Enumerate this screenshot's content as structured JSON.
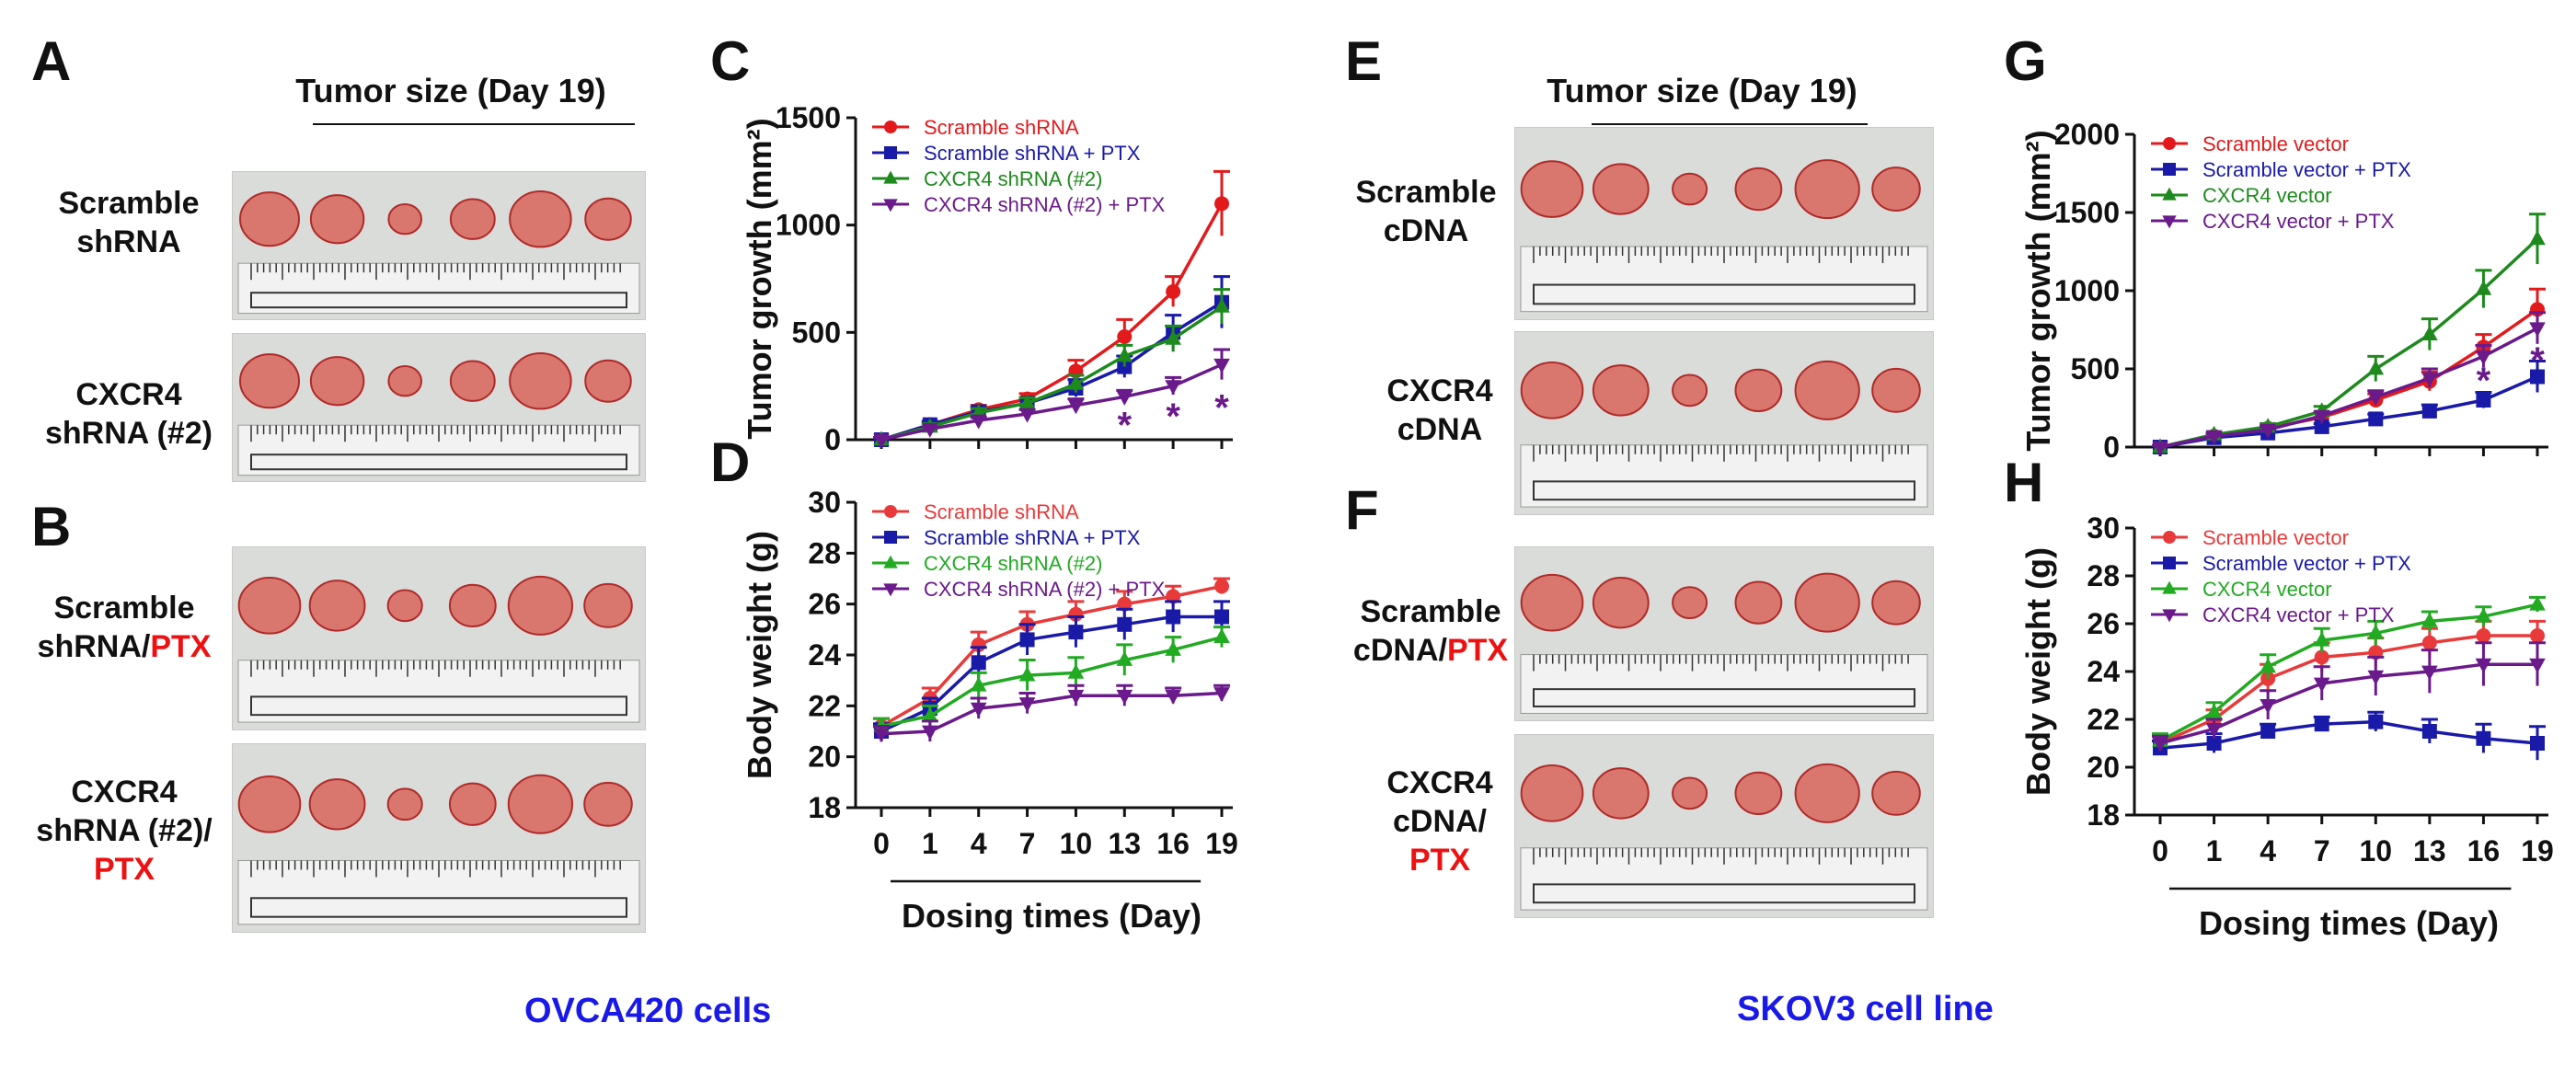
{
  "panels": {
    "A": "A",
    "B": "B",
    "C": "C",
    "D": "D",
    "E": "E",
    "F": "F",
    "G": "G",
    "H": "H"
  },
  "photos": {
    "left_title": "Tumor size (Day 19)",
    "right_title": "Tumor size (Day 19)",
    "A_rows": [
      {
        "line1": "Scramble",
        "line2": "shRNA",
        "red": "",
        "tumors": 6
      },
      {
        "line1": "CXCR4",
        "line2": "shRNA (#2)",
        "red": "",
        "tumors": 6
      }
    ],
    "B_rows": [
      {
        "line1": "Scramble",
        "line2": "shRNA/",
        "red": "PTX",
        "tumors": 6
      },
      {
        "line1": "CXCR4",
        "line2": "shRNA (#2)/",
        "red": "PTX",
        "tumors": 6
      }
    ],
    "E_rows": [
      {
        "line1": "Scramble",
        "line2": "cDNA",
        "red": "",
        "tumors": 6
      },
      {
        "line1": "CXCR4",
        "line2": "cDNA",
        "red": "",
        "tumors": 6
      }
    ],
    "F_rows": [
      {
        "line1": "Scramble",
        "line2": "cDNA/",
        "red": "PTX",
        "tumors": 6
      },
      {
        "line1": "CXCR4",
        "line2": "cDNA/",
        "red": "PTX",
        "tumors": 6
      }
    ]
  },
  "captions": {
    "left": "OVCA420 cells",
    "right": "SKOV3 cell line"
  },
  "colors": {
    "red": "#e31a1c",
    "blue": "#1a1aa8",
    "green": "#1e8a1e",
    "purple": "#6a1a8a",
    "pink_legend": "#e83a3a",
    "green_legend": "#22aa22",
    "tumor": "#d9776e",
    "tumor_dark": "#b02a2a",
    "ruler": "#f2f2f2"
  },
  "chart_data": [
    {
      "id": "C",
      "type": "line",
      "xlabel": "",
      "ylabel": "Tumor growth (mm²)",
      "x_categories": [
        "0",
        "1",
        "4",
        "7",
        "10",
        "13",
        "16",
        "19"
      ],
      "yticks": [
        0,
        500,
        1000,
        1500
      ],
      "ylim": [
        0,
        1500
      ],
      "show_x_tick_labels": false,
      "legend_placement": "top-left",
      "series": [
        {
          "name": "Scramble shRNA",
          "color_key": "red",
          "marker": "circle",
          "values": [
            0,
            70,
            140,
            190,
            320,
            480,
            690,
            1100
          ],
          "errors": [
            10,
            15,
            20,
            25,
            50,
            80,
            70,
            150
          ]
        },
        {
          "name": "Scramble shRNA + PTX",
          "color_key": "blue",
          "marker": "square",
          "values": [
            0,
            70,
            130,
            170,
            240,
            340,
            500,
            640
          ],
          "errors": [
            10,
            15,
            20,
            25,
            40,
            50,
            80,
            120
          ]
        },
        {
          "name": "CXCR4 shRNA (#2)",
          "color_key": "green",
          "marker": "triangle-up",
          "values": [
            0,
            60,
            125,
            170,
            260,
            390,
            470,
            620
          ],
          "errors": [
            10,
            15,
            20,
            25,
            40,
            50,
            60,
            80
          ]
        },
        {
          "name": "CXCR4 shRNA (#2) + PTX",
          "color_key": "purple",
          "marker": "triangle-down",
          "values": [
            0,
            50,
            90,
            120,
            160,
            200,
            250,
            350
          ],
          "errors": [
            10,
            10,
            15,
            20,
            30,
            30,
            40,
            70
          ]
        }
      ],
      "annotations": [
        {
          "text": "*",
          "x": "13",
          "y": 80
        },
        {
          "text": "*",
          "x": "16",
          "y": 120
        },
        {
          "text": "*",
          "x": "19",
          "y": 160
        }
      ]
    },
    {
      "id": "D",
      "type": "line",
      "xlabel": "Dosing times (Day)",
      "ylabel": "Body weight (g)",
      "x_categories": [
        "0",
        "1",
        "4",
        "7",
        "10",
        "13",
        "16",
        "19"
      ],
      "yticks": [
        18,
        20,
        22,
        24,
        26,
        28,
        30
      ],
      "ylim": [
        18,
        30
      ],
      "show_x_tick_labels": true,
      "legend_placement": "top-left",
      "series": [
        {
          "name": "Scramble shRNA",
          "color_key": "pink_legend",
          "marker": "circle",
          "values": [
            21.2,
            22.3,
            24.4,
            25.2,
            25.6,
            26.0,
            26.3,
            26.7
          ],
          "errors": [
            0.3,
            0.4,
            0.5,
            0.5,
            0.5,
            0.5,
            0.4,
            0.3
          ]
        },
        {
          "name": "Scramble shRNA + PTX",
          "color_key": "blue",
          "marker": "square",
          "values": [
            21.0,
            21.9,
            23.7,
            24.6,
            24.9,
            25.2,
            25.5,
            25.5
          ],
          "errors": [
            0.3,
            0.4,
            0.6,
            0.6,
            0.6,
            0.6,
            0.6,
            0.6
          ]
        },
        {
          "name": "CXCR4 shRNA (#2)",
          "color_key": "green_legend",
          "marker": "triangle-up",
          "values": [
            21.2,
            21.6,
            22.8,
            23.2,
            23.3,
            23.8,
            24.2,
            24.7
          ],
          "errors": [
            0.3,
            0.4,
            0.5,
            0.6,
            0.6,
            0.6,
            0.5,
            0.4
          ]
        },
        {
          "name": "CXCR4 shRNA (#2) + PTX",
          "color_key": "purple",
          "marker": "triangle-down",
          "values": [
            20.9,
            21.0,
            21.9,
            22.1,
            22.4,
            22.4,
            22.4,
            22.5
          ],
          "errors": [
            0.3,
            0.4,
            0.4,
            0.4,
            0.4,
            0.4,
            0.3,
            0.3
          ]
        }
      ],
      "annotations": []
    },
    {
      "id": "G",
      "type": "line",
      "xlabel": "",
      "ylabel": "Tumor growth (mm²)",
      "x_categories": [
        "0",
        "1",
        "4",
        "7",
        "10",
        "13",
        "16",
        "19"
      ],
      "yticks": [
        0,
        500,
        1000,
        1500,
        2000
      ],
      "ylim": [
        0,
        2000
      ],
      "show_x_tick_labels": false,
      "legend_placement": "top-left",
      "series": [
        {
          "name": "Scramble vector",
          "color_key": "red",
          "marker": "circle",
          "values": [
            0,
            70,
            120,
            190,
            300,
            420,
            640,
            880
          ],
          "errors": [
            10,
            15,
            20,
            25,
            40,
            60,
            80,
            130
          ]
        },
        {
          "name": "Scramble vector + PTX",
          "color_key": "blue",
          "marker": "square",
          "values": [
            0,
            60,
            90,
            130,
            180,
            230,
            300,
            450
          ],
          "errors": [
            10,
            10,
            15,
            20,
            30,
            40,
            50,
            100
          ]
        },
        {
          "name": "CXCR4 vector",
          "color_key": "green",
          "marker": "triangle-up",
          "values": [
            0,
            80,
            130,
            230,
            500,
            720,
            1010,
            1330
          ],
          "errors": [
            10,
            15,
            20,
            30,
            80,
            100,
            120,
            160
          ]
        },
        {
          "name": "CXCR4 vector + PTX",
          "color_key": "purple",
          "marker": "triangle-down",
          "values": [
            0,
            70,
            110,
            200,
            320,
            440,
            580,
            760
          ],
          "errors": [
            10,
            15,
            20,
            25,
            40,
            60,
            70,
            100
          ]
        }
      ],
      "annotations": [
        {
          "text": "*",
          "x": "16",
          "y": 440
        },
        {
          "text": "*",
          "x": "19",
          "y": 570
        }
      ]
    },
    {
      "id": "H",
      "type": "line",
      "xlabel": "Dosing times (Day)",
      "ylabel": "Body weight (g)",
      "x_categories": [
        "0",
        "1",
        "4",
        "7",
        "10",
        "13",
        "16",
        "19"
      ],
      "yticks": [
        18,
        20,
        22,
        24,
        26,
        28,
        30
      ],
      "ylim": [
        18,
        30
      ],
      "show_x_tick_labels": true,
      "legend_placement": "top-left",
      "series": [
        {
          "name": "Scramble vector",
          "color_key": "pink_legend",
          "marker": "circle",
          "values": [
            21.0,
            22.0,
            23.7,
            24.6,
            24.8,
            25.2,
            25.5,
            25.5
          ],
          "errors": [
            0.3,
            0.4,
            0.6,
            0.6,
            0.6,
            0.6,
            0.6,
            0.6
          ]
        },
        {
          "name": "Scramble vector + PTX",
          "color_key": "blue",
          "marker": "square",
          "values": [
            20.8,
            21.0,
            21.5,
            21.8,
            21.9,
            21.5,
            21.2,
            21.0
          ],
          "errors": [
            0.3,
            0.4,
            0.3,
            0.3,
            0.4,
            0.5,
            0.6,
            0.7
          ]
        },
        {
          "name": "CXCR4 vector",
          "color_key": "green_legend",
          "marker": "triangle-up",
          "values": [
            21.1,
            22.3,
            24.2,
            25.3,
            25.6,
            26.1,
            26.3,
            26.8
          ],
          "errors": [
            0.3,
            0.4,
            0.5,
            0.5,
            0.5,
            0.4,
            0.4,
            0.3
          ]
        },
        {
          "name": "CXCR4 vector + PTX",
          "color_key": "purple",
          "marker": "triangle-down",
          "values": [
            21.0,
            21.6,
            22.6,
            23.5,
            23.8,
            24.0,
            24.3,
            24.3
          ],
          "errors": [
            0.3,
            0.4,
            0.6,
            0.7,
            0.8,
            0.9,
            0.9,
            0.9
          ]
        }
      ],
      "annotations": []
    }
  ]
}
